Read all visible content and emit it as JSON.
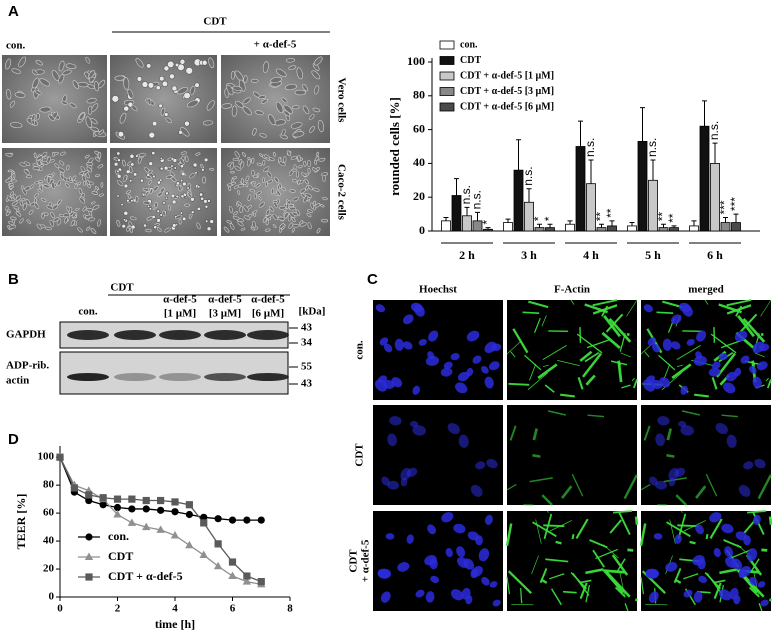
{
  "panel_a": {
    "label": "A",
    "group_header": "CDT",
    "column_labels": [
      "con.",
      "+ α-def-5"
    ],
    "row_labels": [
      "Vero cells",
      "Caco-2 cells"
    ]
  },
  "panel_b": {
    "label": "B",
    "group_header": "CDT",
    "lanes": [
      [
        "con."
      ],
      [
        "α-def-5",
        "[1 µM]"
      ],
      [
        "α-def-5",
        "[3 µM]"
      ],
      [
        "α-def-5",
        "[6 µM]"
      ]
    ],
    "unit": "[kDa]",
    "rows": [
      {
        "label": [
          "GAPDH"
        ],
        "markers": [
          43,
          34
        ]
      },
      {
        "label": [
          "ADP-rib.",
          "actin"
        ],
        "markers": [
          55,
          43
        ]
      }
    ]
  },
  "panel_c": {
    "label": "C",
    "columns": [
      "Hoechst",
      "F-Actin",
      "merged"
    ],
    "rows": [
      [
        "con."
      ],
      [
        "CDT"
      ],
      [
        "CDT",
        "+ α-def-5"
      ]
    ]
  },
  "panel_d": {
    "label": "D"
  },
  "chart_data": [
    {
      "type": "bar",
      "ylabel": "rounded cells [%]",
      "categories": [
        "2 h",
        "3 h",
        "4 h",
        "5 h",
        "6 h"
      ],
      "ylim": [
        0,
        100
      ],
      "yticks": [
        0,
        20,
        40,
        60,
        80,
        100
      ],
      "legend": "upper left",
      "series": [
        {
          "name": "con.",
          "color": "#ffffff",
          "values": [
            6,
            5,
            4,
            3,
            3
          ],
          "errors": [
            2,
            2,
            2,
            2,
            3
          ]
        },
        {
          "name": "CDT",
          "color": "#111111",
          "values": [
            21,
            36,
            50,
            53,
            62
          ],
          "errors": [
            10,
            18,
            15,
            20,
            15
          ]
        },
        {
          "name": "CDT + α-def-5 [1 µM]",
          "color": "#c8c8c8",
          "values": [
            9,
            17,
            28,
            30,
            40
          ],
          "errors": [
            5,
            8,
            14,
            12,
            12
          ],
          "significance": [
            "n.s.",
            "n.s.",
            "n.s.",
            "n.s.",
            "n.s."
          ]
        },
        {
          "name": "CDT + α-def-5 [3 µM]",
          "color": "#888888",
          "values": [
            6,
            2,
            2,
            2,
            5
          ],
          "errors": [
            5,
            2,
            2,
            2,
            3
          ],
          "significance": [
            "n.s.",
            "*",
            "**",
            "**",
            "***"
          ]
        },
        {
          "name": "CDT + α-def-5 [6 µM]",
          "color": "#4a4a4a",
          "values": [
            1,
            2,
            3,
            2,
            5
          ],
          "errors": [
            1,
            2,
            3,
            1,
            5
          ],
          "significance": [
            "*",
            "*",
            "**",
            "**",
            "***"
          ]
        }
      ]
    },
    {
      "type": "line",
      "xlabel": "time [h]",
      "ylabel": "TEER [%]",
      "x": [
        0,
        0.5,
        1,
        1.5,
        2,
        2.5,
        3,
        3.5,
        4,
        4.5,
        5,
        5.5,
        6,
        6.5,
        7
      ],
      "xlim": [
        0,
        8
      ],
      "xticks": [
        0,
        2,
        4,
        6,
        8
      ],
      "ylim": [
        0,
        108
      ],
      "yticks": [
        0,
        20,
        40,
        60,
        80,
        100
      ],
      "legend": "lower left",
      "series": [
        {
          "name": "con.",
          "color": "#000000",
          "marker": "circle",
          "values": [
            100,
            75,
            69,
            66,
            64,
            63,
            63,
            62,
            61,
            59,
            57,
            56,
            55,
            55,
            55
          ]
        },
        {
          "name": "CDT",
          "color": "#909090",
          "marker": "triangle",
          "values": [
            100,
            80,
            76,
            70,
            59,
            53,
            50,
            48,
            44,
            37,
            30,
            22,
            15,
            11,
            9
          ]
        },
        {
          "name": "CDT + α-def-5",
          "color": "#5a5a5a",
          "marker": "square",
          "values": [
            100,
            78,
            73,
            71,
            70,
            70,
            69,
            69,
            68,
            66,
            53,
            38,
            25,
            15,
            11
          ]
        }
      ]
    }
  ]
}
